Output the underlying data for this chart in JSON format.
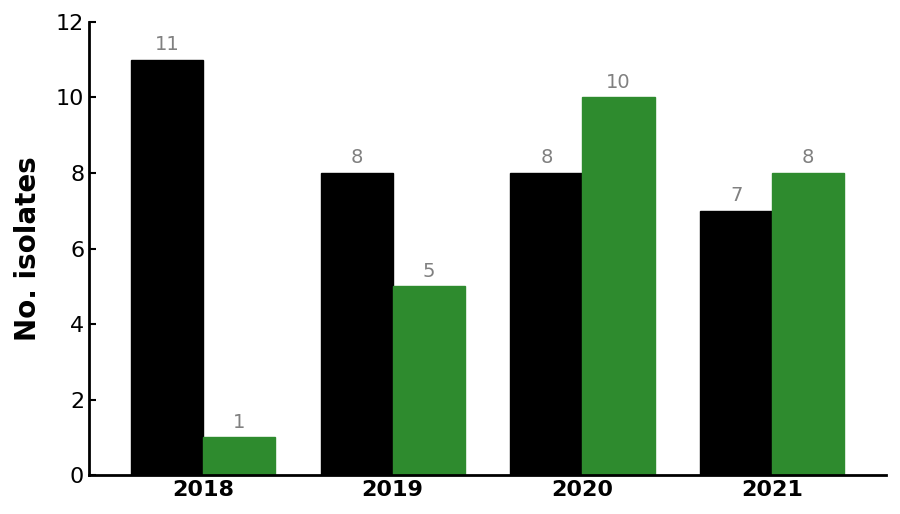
{
  "years": [
    "2018",
    "2019",
    "2020",
    "2021"
  ],
  "black_values": [
    11,
    8,
    8,
    7
  ],
  "green_values": [
    1,
    5,
    10,
    8
  ],
  "black_color": "#000000",
  "green_color": "#2e8b2e",
  "ylabel": "No. isolates",
  "ylim": [
    0,
    12
  ],
  "yticks": [
    0,
    2,
    4,
    6,
    8,
    10,
    12
  ],
  "bar_width": 0.38,
  "tick_fontsize": 16,
  "ylabel_fontsize": 20,
  "annotation_fontsize": 14,
  "annotation_color": "#808080",
  "background_color": "#ffffff"
}
